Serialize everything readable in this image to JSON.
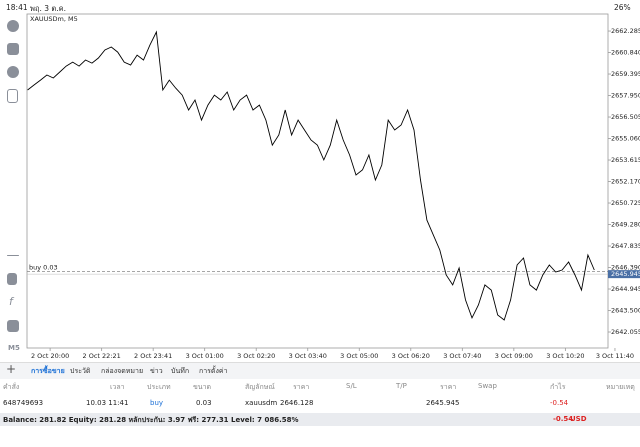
{
  "status_bar": {
    "time": "18:41",
    "date": "พฤ. 3 ต.ค.",
    "battery": "26%"
  },
  "chart_data": {
    "type": "line",
    "title": "XAUUSDm, M5",
    "color": "#000000",
    "values": [
      2658.32,
      2658.66,
      2658.99,
      2659.33,
      2659.13,
      2659.53,
      2659.93,
      2660.2,
      2659.93,
      2660.34,
      2660.13,
      2660.47,
      2661.01,
      2661.21,
      2660.87,
      2660.2,
      2660.0,
      2660.67,
      2660.34,
      2661.34,
      2662.22,
      2658.32,
      2658.99,
      2658.45,
      2657.98,
      2656.98,
      2657.65,
      2656.3,
      2657.31,
      2657.98,
      2657.65,
      2658.19,
      2656.98,
      2657.65,
      2657.98,
      2656.98,
      2657.31,
      2656.3,
      2654.62,
      2655.3,
      2656.98,
      2655.3,
      2656.3,
      2655.63,
      2654.96,
      2654.62,
      2653.62,
      2654.62,
      2656.3,
      2654.96,
      2653.95,
      2652.61,
      2652.95,
      2653.95,
      2652.27,
      2653.28,
      2656.3,
      2655.63,
      2655.97,
      2656.98,
      2655.63,
      2652.27,
      2649.58,
      2648.58,
      2647.57,
      2645.89,
      2645.22,
      2646.36,
      2644.21,
      2643.0,
      2643.87,
      2645.22,
      2644.87,
      2643.2,
      2642.86,
      2644.21,
      2646.56,
      2647.03,
      2645.22,
      2644.87,
      2645.89,
      2646.56,
      2646.09,
      2646.22,
      2646.76,
      2645.89,
      2644.87,
      2647.23,
      2646.22
    ],
    "xlim": [
      -0.09,
      90.12
    ],
    "xticks": [
      {
        "value": 3.5,
        "label": "2 Oct 20:00"
      },
      {
        "value": 11.5,
        "label": "2 Oct 22:21"
      },
      {
        "value": 19.5,
        "label": "2 Oct 23:41"
      },
      {
        "value": 27.5,
        "label": "3 Oct 01:00"
      },
      {
        "value": 35.5,
        "label": "3 Oct 02:20"
      },
      {
        "value": 43.5,
        "label": "3 Oct 03:40"
      },
      {
        "value": 51.5,
        "label": "3 Oct 05:00"
      },
      {
        "value": 59.5,
        "label": "3 Oct 06:20"
      },
      {
        "value": 67.5,
        "label": "3 Oct 07:40"
      },
      {
        "value": 75.5,
        "label": "3 Oct 09:00"
      },
      {
        "value": 83.5,
        "label": "3 Oct 10:20"
      },
      {
        "value": 91.2,
        "label": "3 Oct 11:40"
      }
    ],
    "ylim": [
      2640.98,
      2663.43
    ],
    "yticks": [
      {
        "value": 2662.285,
        "label": "2662.285"
      },
      {
        "value": 2660.84,
        "label": "2660.840"
      },
      {
        "value": 2659.395,
        "label": "2659.395"
      },
      {
        "value": 2657.95,
        "label": "2657.950"
      },
      {
        "value": 2656.505,
        "label": "2656.505"
      },
      {
        "value": 2655.06,
        "label": "2655.060"
      },
      {
        "value": 2653.615,
        "label": "2653.615"
      },
      {
        "value": 2652.17,
        "label": "2652.170"
      },
      {
        "value": 2650.725,
        "label": "2650.725"
      },
      {
        "value": 2649.28,
        "label": "2649.280"
      },
      {
        "value": 2647.835,
        "label": "2647.835"
      },
      {
        "value": 2646.39,
        "label": "2646.390"
      },
      {
        "value": 2644.945,
        "label": "2644.945"
      },
      {
        "value": 2643.5,
        "label": "2643.500"
      },
      {
        "value": 2642.055,
        "label": "2642.055"
      }
    ],
    "order_line": {
      "label": "buy 0.03",
      "value": 2646.128
    },
    "current_price": 2645.945
  },
  "tabs": [
    "การซื้อขาย",
    "ประวัติ",
    "กล่องจดหมาย",
    "ข่าว",
    "บันทึก",
    "การตั้งค่า"
  ],
  "table": {
    "headers": {
      "order": "คำสั่ง",
      "time": "เวลา",
      "type": "ประเภท",
      "volume": "ขนาด",
      "symbol": "สัญลักษณ์",
      "open_price": "ราคา",
      "sl": "S/L",
      "tp": "T/P",
      "price": "ราคา",
      "swap": "Swap",
      "profit": "กำไร",
      "comment": "หมายเหตุ"
    },
    "rows": [
      {
        "order": "648749693",
        "time": "10.03 11:41",
        "type": "buy",
        "volume": "0.03",
        "symbol": "xauusdm",
        "open_price": "2646.128",
        "price": "2645.945",
        "profit": "-0.54"
      }
    ],
    "summary": "Balance: 281.82 Equity: 281.28 หลักประกัน: 3.97 ฟรี: 277.31 Level: 7 086.58%",
    "total_profit": "-0.54",
    "currency": "USD"
  }
}
